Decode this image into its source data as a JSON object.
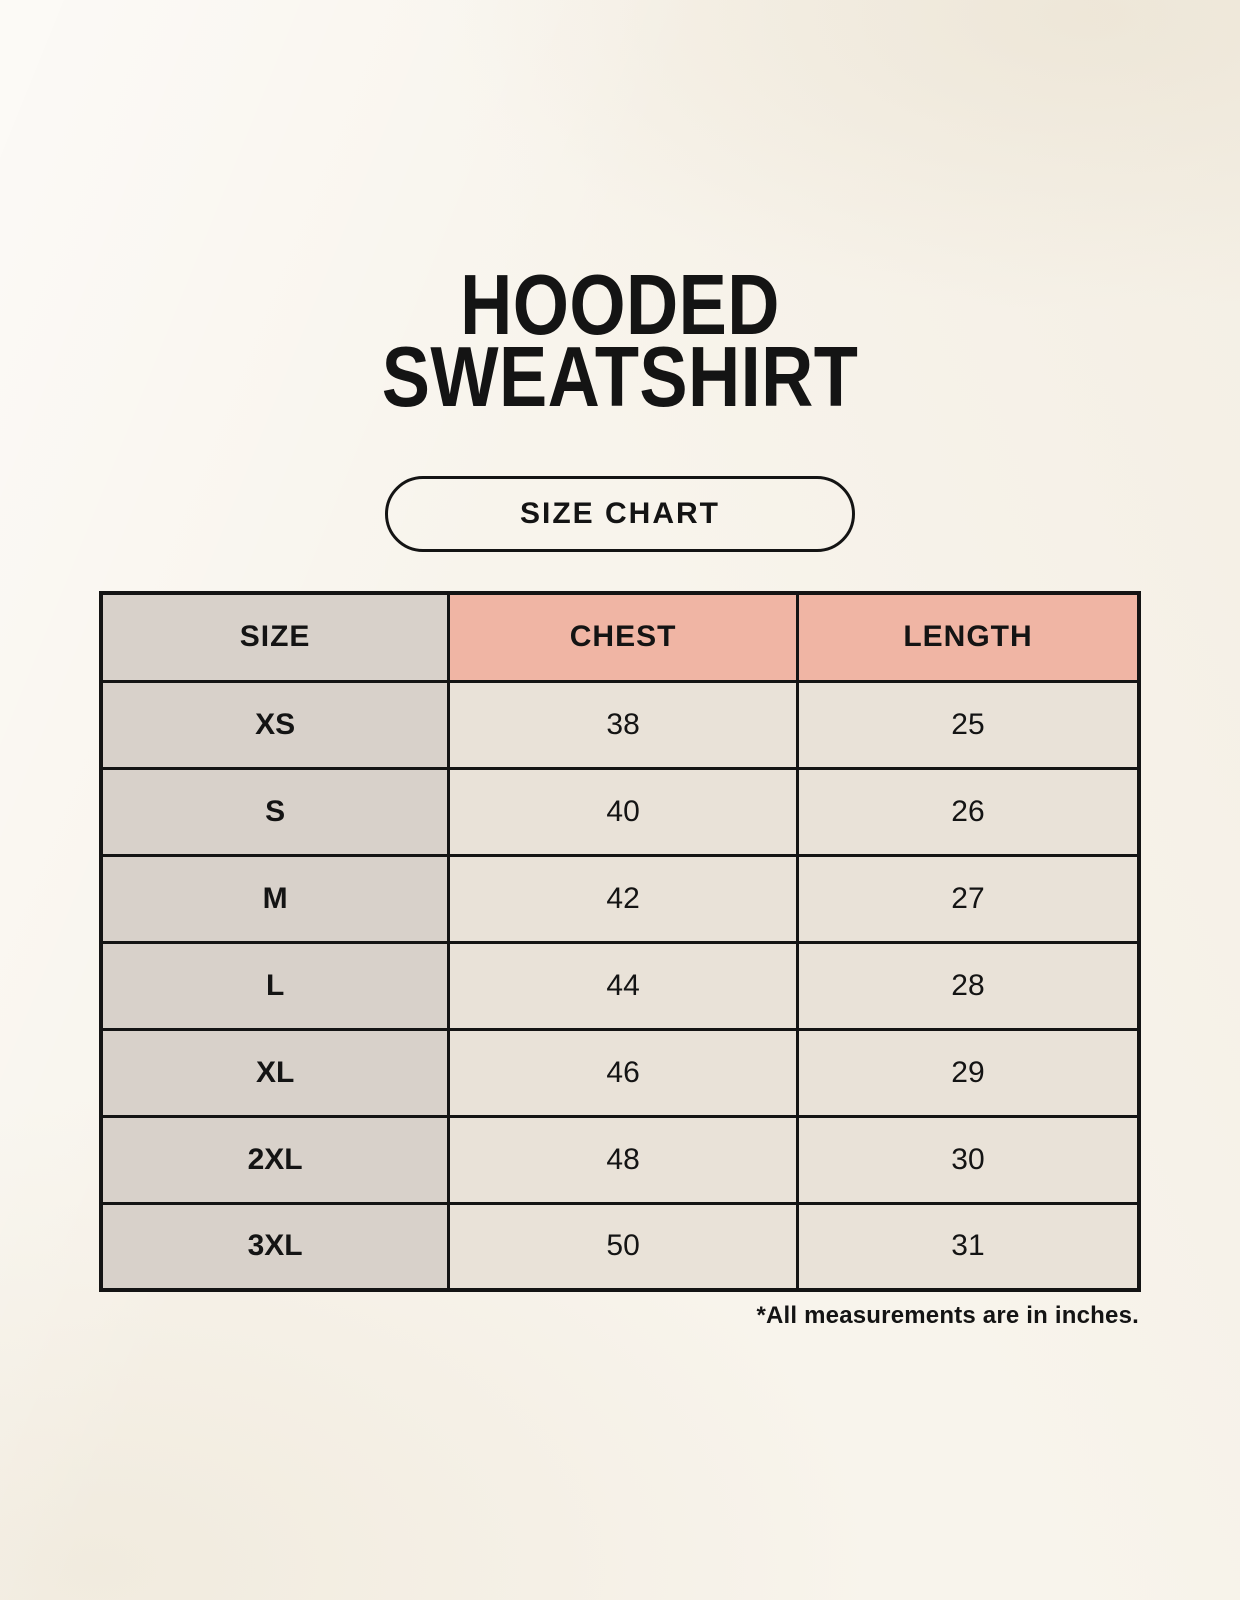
{
  "header": {
    "title_line1": "HOODED",
    "title_line2": "SWEATSHIRT",
    "badge_label": "SIZE CHART"
  },
  "table": {
    "columns": [
      "SIZE",
      "CHEST",
      "LENGTH"
    ],
    "rows": [
      {
        "size": "XS",
        "chest": "38",
        "length": "25"
      },
      {
        "size": "S",
        "chest": "40",
        "length": "26"
      },
      {
        "size": "M",
        "chest": "42",
        "length": "27"
      },
      {
        "size": "L",
        "chest": "44",
        "length": "28"
      },
      {
        "size": "XL",
        "chest": "46",
        "length": "29"
      },
      {
        "size": "2XL",
        "chest": "48",
        "length": "30"
      },
      {
        "size": "3XL",
        "chest": "50",
        "length": "31"
      }
    ]
  },
  "footnote": "*All measurements are in inches.",
  "colors": {
    "background": "#f8f4ec",
    "accent_header": "#f0b5a4",
    "size_column": "#d8d1ca",
    "cell": "#e9e2d8",
    "border": "#141414",
    "text": "#141414"
  }
}
